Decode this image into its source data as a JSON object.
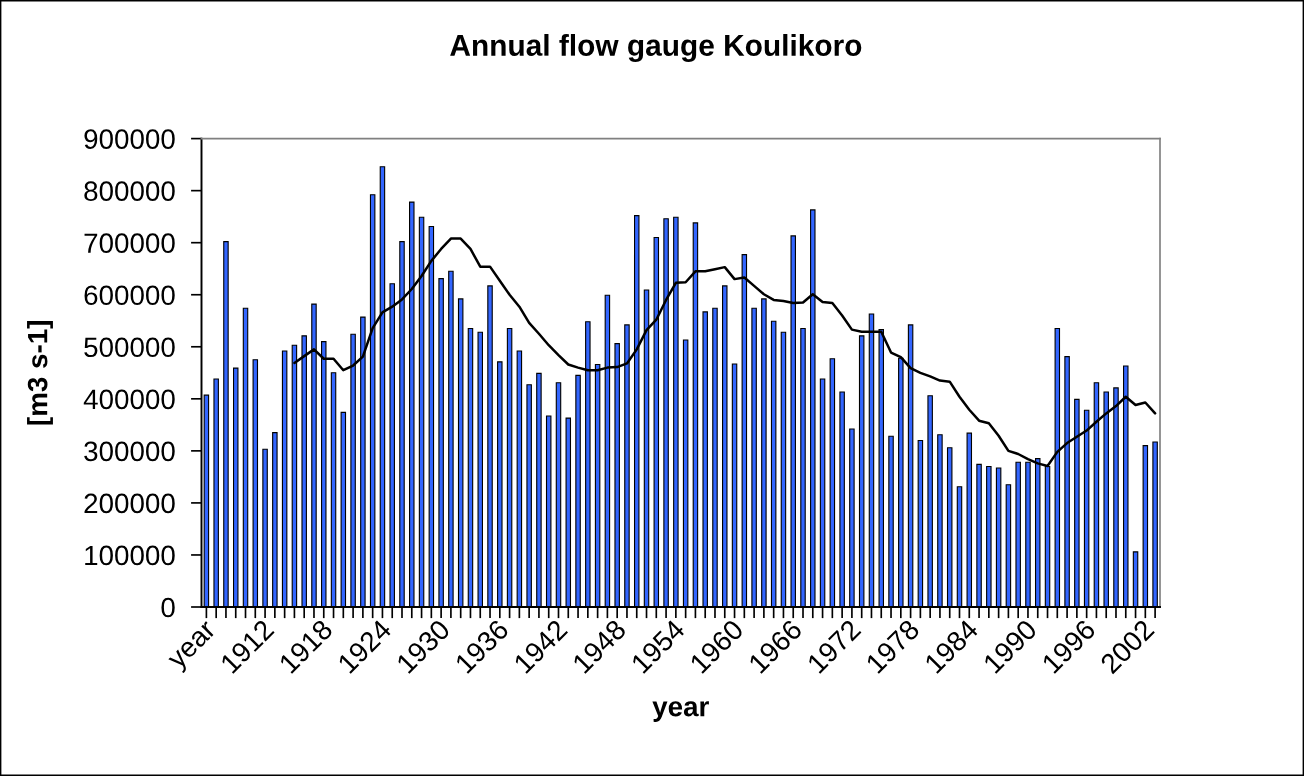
{
  "chart_data": {
    "type": "bar",
    "title": "Annual flow gauge Koulikoro",
    "xlabel": "year",
    "ylabel": "[m3 s-1]",
    "categories": [
      "year",
      null,
      null,
      null,
      null,
      null,
      "1912",
      null,
      null,
      null,
      null,
      null,
      "1918",
      null,
      null,
      null,
      null,
      null,
      "1924",
      null,
      null,
      null,
      null,
      null,
      "1930",
      null,
      null,
      null,
      null,
      null,
      "1936",
      null,
      null,
      null,
      null,
      null,
      "1942",
      null,
      null,
      null,
      null,
      null,
      "1948",
      null,
      null,
      null,
      null,
      null,
      "1954",
      null,
      null,
      null,
      null,
      null,
      "1960",
      null,
      null,
      null,
      null,
      null,
      "1966",
      null,
      null,
      null,
      null,
      null,
      "1972",
      null,
      null,
      null,
      null,
      null,
      "1978",
      null,
      null,
      null,
      null,
      null,
      "1984",
      null,
      null,
      null,
      null,
      null,
      "1990",
      null,
      null,
      null,
      null,
      null,
      "1996",
      null,
      null,
      null,
      null,
      null,
      "2002",
      null
    ],
    "series": [
      {
        "type": "bar",
        "color": "#3366ff",
        "values": [
          407000,
          438000,
          702000,
          459000,
          574000,
          475000,
          303000,
          335000,
          492000,
          503000,
          521000,
          582000,
          510000,
          450000,
          374000,
          524000,
          557000,
          792000,
          846000,
          621000,
          702000,
          778000,
          749000,
          731000,
          631000,
          645000,
          592000,
          535000,
          528000,
          617000,
          471000,
          535000,
          492000,
          427000,
          449000,
          367000,
          431000,
          363000,
          445000,
          548000,
          466000,
          599000,
          506000,
          542000,
          752000,
          609000,
          710000,
          746000,
          749000,
          513000,
          738000,
          567000,
          574000,
          617000,
          467000,
          677000,
          574000,
          592000,
          549000,
          528000,
          713000,
          535000,
          763000,
          438000,
          477000,
          413000,
          342000,
          521000,
          563000,
          533000,
          328000,
          478000,
          542000,
          320000,
          406000,
          331000,
          306000,
          231000,
          334000,
          274000,
          270000,
          267000,
          235000,
          278000,
          278000,
          285000,
          270000,
          535000,
          481000,
          399000,
          378000,
          431000,
          413000,
          421000,
          463000,
          106000,
          310000,
          317000
        ]
      },
      {
        "type": "line",
        "color": "#000000",
        "values": [
          null,
          null,
          null,
          null,
          null,
          null,
          null,
          null,
          null,
          469000,
          482000,
          495000,
          477000,
          477000,
          455000,
          464000,
          481000,
          536000,
          566000,
          577000,
          591000,
          611000,
          636000,
          665000,
          688000,
          708000,
          708000,
          688000,
          654000,
          654000,
          627000,
          600000,
          577000,
          546000,
          525000,
          503000,
          484000,
          466000,
          460000,
          455000,
          455000,
          460000,
          461000,
          468000,
          495000,
          532000,
          552000,
          590000,
          623000,
          624000,
          645000,
          645000,
          649000,
          653000,
          630000,
          633000,
          617000,
          601000,
          590000,
          588000,
          584000,
          585000,
          601000,
          586000,
          584000,
          560000,
          533000,
          529000,
          529000,
          529000,
          489000,
          480000,
          459000,
          450000,
          443000,
          435000,
          433000,
          404000,
          379000,
          358000,
          353000,
          329000,
          300000,
          294000,
          284000,
          276000,
          271000,
          298000,
          315000,
          327000,
          339000,
          356000,
          372000,
          386000,
          404000,
          388000,
          393000,
          372000
        ]
      }
    ],
    "ylim": [
      0,
      900000
    ],
    "yticks": [
      0,
      100000,
      200000,
      300000,
      400000,
      500000,
      600000,
      700000,
      800000,
      900000
    ]
  }
}
